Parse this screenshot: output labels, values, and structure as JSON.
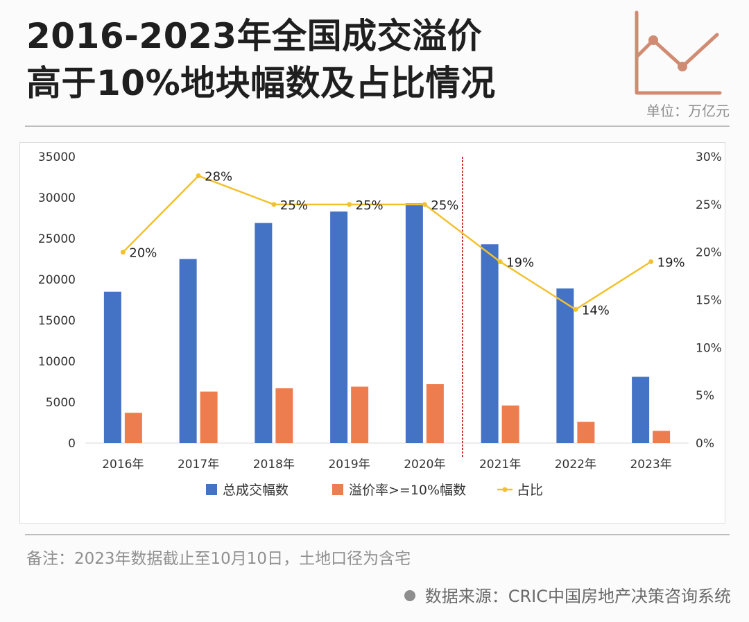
{
  "header": {
    "title_line1": "2016-2023年全国成交溢价",
    "title_line2": "高于10%地块幅数及占比情况",
    "unit": "单位：万亿元"
  },
  "colors": {
    "total": "#4472c4",
    "premium": "#ed7d4f",
    "ratio": "#f2c12e",
    "divider": "#c00000",
    "logo": "#d08c73"
  },
  "chart_data": {
    "type": "bar",
    "categories": [
      "2016年",
      "2017年",
      "2018年",
      "2019年",
      "2020年",
      "2021年",
      "2022年",
      "2023年"
    ],
    "series": [
      {
        "name": "总成交幅数",
        "type": "bar",
        "axis": "left",
        "values": [
          18500,
          22500,
          26900,
          28300,
          29300,
          24300,
          18900,
          8100
        ]
      },
      {
        "name": "溢价率>=10%幅数",
        "type": "bar",
        "axis": "left",
        "values": [
          3700,
          6300,
          6700,
          6900,
          7200,
          4600,
          2600,
          1500
        ]
      },
      {
        "name": "占比",
        "type": "line",
        "axis": "right",
        "values": [
          0.2,
          0.28,
          0.25,
          0.25,
          0.25,
          0.19,
          0.14,
          0.19
        ],
        "labels": [
          "20%",
          "28%",
          "25%",
          "25%",
          "25%",
          "19%",
          "14%",
          "19%"
        ]
      }
    ],
    "y_left": {
      "min": 0,
      "max": 35000,
      "ticks": [
        "0",
        "5000",
        "10000",
        "15000",
        "20000",
        "25000",
        "30000",
        "35000"
      ]
    },
    "y_right": {
      "min": 0,
      "max": 0.3,
      "ticks": [
        "0%",
        "5%",
        "10%",
        "15%",
        "20%",
        "25%",
        "30%"
      ]
    },
    "divider_between": [
      "2020年",
      "2021年"
    ],
    "legend_position": "bottom-center",
    "grid": false
  },
  "footer": {
    "note": "备注：2023年数据截止至10月10日，土地口径为含宅",
    "source": "数据来源：CRIC中国房地产决策咨询系统"
  }
}
